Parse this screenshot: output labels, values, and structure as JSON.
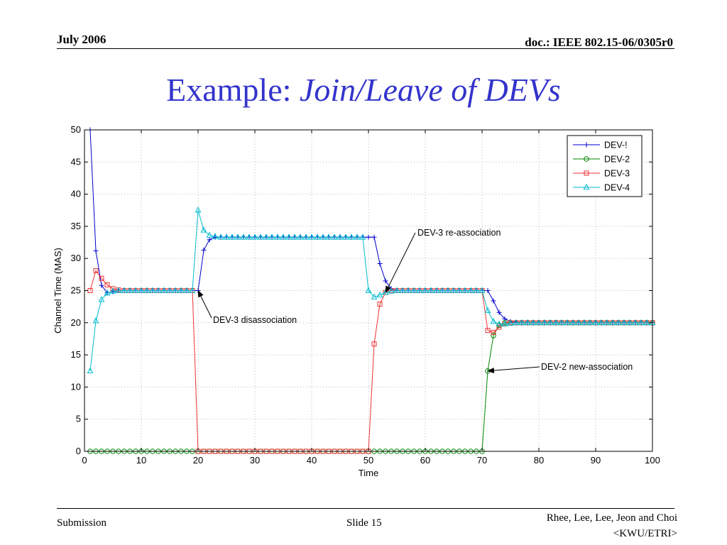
{
  "header": {
    "date": "July 2006",
    "doc": "doc.: IEEE 802.15-06/0305r0"
  },
  "title": {
    "prefix": "Example: ",
    "emphasis": "Join/Leave of DEVs"
  },
  "footer": {
    "left": "Submission",
    "slide": "Slide 15",
    "authors": "Rhee, Lee, Lee, Jeon and Choi",
    "org": "<KWU/ETRI>"
  },
  "chart_data": {
    "type": "line",
    "xlabel": "Time",
    "ylabel": "Channel Time (MAS)",
    "xlim": [
      0,
      100
    ],
    "ylim": [
      0,
      50
    ],
    "xticks": [
      0,
      10,
      20,
      30,
      40,
      50,
      60,
      70,
      80,
      90,
      100
    ],
    "yticks": [
      0,
      5,
      10,
      15,
      20,
      25,
      30,
      35,
      40,
      45,
      50
    ],
    "grid": true,
    "legend_position": "top-right",
    "x": [
      1,
      2,
      3,
      4,
      5,
      6,
      7,
      8,
      9,
      10,
      11,
      12,
      13,
      14,
      15,
      16,
      17,
      18,
      19,
      20,
      21,
      22,
      23,
      24,
      25,
      26,
      27,
      28,
      29,
      30,
      31,
      32,
      33,
      34,
      35,
      36,
      37,
      38,
      39,
      40,
      41,
      42,
      43,
      44,
      45,
      46,
      47,
      48,
      49,
      50,
      51,
      52,
      53,
      54,
      55,
      56,
      57,
      58,
      59,
      60,
      61,
      62,
      63,
      64,
      65,
      66,
      67,
      68,
      69,
      70,
      71,
      72,
      73,
      74,
      75,
      76,
      77,
      78,
      79,
      80,
      81,
      82,
      83,
      84,
      85,
      86,
      87,
      88,
      89,
      90,
      91,
      92,
      93,
      94,
      95,
      96,
      97,
      98,
      99,
      100
    ],
    "series": [
      {
        "name": "DEV-!",
        "color": "#0000cc",
        "marker": "plus",
        "values": [
          50,
          31.2,
          25.8,
          24.7,
          24.8,
          25,
          25,
          25,
          25,
          25,
          25,
          25,
          25,
          25,
          25,
          25,
          25,
          25,
          25,
          25,
          31.3,
          32.9,
          33.3,
          33.3,
          33.3,
          33.3,
          33.3,
          33.3,
          33.3,
          33.3,
          33.3,
          33.3,
          33.3,
          33.3,
          33.3,
          33.3,
          33.3,
          33.3,
          33.3,
          33.3,
          33.3,
          33.3,
          33.3,
          33.3,
          33.3,
          33.3,
          33.3,
          33.3,
          33.3,
          33.3,
          33.3,
          29.2,
          26.5,
          25.3,
          25,
          25,
          25,
          25,
          25,
          25,
          25,
          25,
          25,
          25,
          25,
          25,
          25,
          25,
          25,
          25,
          25,
          23.4,
          21.6,
          20.6,
          20.2,
          20.1,
          20,
          20,
          20,
          20,
          20,
          20,
          20,
          20,
          20,
          20,
          20,
          20,
          20,
          20,
          20,
          20,
          20,
          20,
          20,
          20,
          20,
          20,
          20,
          20
        ]
      },
      {
        "name": "DEV-2",
        "color": "#008800",
        "marker": "circle",
        "values": [
          0,
          0,
          0,
          0,
          0,
          0,
          0,
          0,
          0,
          0,
          0,
          0,
          0,
          0,
          0,
          0,
          0,
          0,
          0,
          0,
          0,
          0,
          0,
          0,
          0,
          0,
          0,
          0,
          0,
          0,
          0,
          0,
          0,
          0,
          0,
          0,
          0,
          0,
          0,
          0,
          0,
          0,
          0,
          0,
          0,
          0,
          0,
          0,
          0,
          0,
          0,
          0,
          0,
          0,
          0,
          0,
          0,
          0,
          0,
          0,
          0,
          0,
          0,
          0,
          0,
          0,
          0,
          0,
          0,
          0,
          12.5,
          18,
          19.6,
          20,
          20,
          20,
          20,
          20,
          20,
          20,
          20,
          20,
          20,
          20,
          20,
          20,
          20,
          20,
          20,
          20,
          20,
          20,
          20,
          20,
          20,
          20,
          20,
          20,
          20,
          20
        ]
      },
      {
        "name": "DEV-3",
        "color": "#ee3333",
        "marker": "square",
        "values": [
          25,
          28.1,
          26.9,
          25.9,
          25.3,
          25.1,
          25,
          25,
          25,
          25,
          25,
          25,
          25,
          25,
          25,
          25,
          25,
          25,
          25,
          0,
          0,
          0,
          0,
          0,
          0,
          0,
          0,
          0,
          0,
          0,
          0,
          0,
          0,
          0,
          0,
          0,
          0,
          0,
          0,
          0,
          0,
          0,
          0,
          0,
          0,
          0,
          0,
          0,
          0,
          0,
          16.7,
          22.9,
          24.7,
          25,
          25,
          25,
          25,
          25,
          25,
          25,
          25,
          25,
          25,
          25,
          25,
          25,
          25,
          25,
          25,
          25,
          18.8,
          18.5,
          19.3,
          19.8,
          20,
          20,
          20,
          20,
          20,
          20,
          20,
          20,
          20,
          20,
          20,
          20,
          20,
          20,
          20,
          20,
          20,
          20,
          20,
          20,
          20,
          20,
          20,
          20,
          20,
          20
        ]
      },
      {
        "name": "DEV-4",
        "color": "#00bbcc",
        "marker": "triangle",
        "values": [
          12.5,
          20.3,
          23.6,
          24.6,
          24.9,
          25,
          25,
          25,
          25,
          25,
          25,
          25,
          25,
          25,
          25,
          25,
          25,
          25,
          25,
          37.5,
          34.4,
          33.6,
          33.4,
          33.3,
          33.3,
          33.3,
          33.3,
          33.3,
          33.3,
          33.3,
          33.3,
          33.3,
          33.3,
          33.3,
          33.3,
          33.3,
          33.3,
          33.3,
          33.3,
          33.3,
          33.3,
          33.3,
          33.3,
          33.3,
          33.3,
          33.3,
          33.3,
          33.3,
          33.3,
          25,
          24,
          24.3,
          24.7,
          24.9,
          25,
          25,
          25,
          25,
          25,
          25,
          25,
          25,
          25,
          25,
          25,
          25,
          25,
          25,
          25,
          25,
          21.9,
          20.2,
          19.8,
          19.8,
          19.9,
          20,
          20,
          20,
          20,
          20,
          20,
          20,
          20,
          20,
          20,
          20,
          20,
          20,
          20,
          20,
          20,
          20,
          20,
          20,
          20,
          20,
          20,
          20,
          20,
          20
        ]
      }
    ],
    "annotations": [
      {
        "text": "DEV-3 disassociation",
        "x": 20,
        "y": 25
      },
      {
        "text": "DEV-3 re-association",
        "x": 53,
        "y": 24.7
      },
      {
        "text": "DEV-2 new-association",
        "x": 71,
        "y": 12.5
      }
    ]
  }
}
